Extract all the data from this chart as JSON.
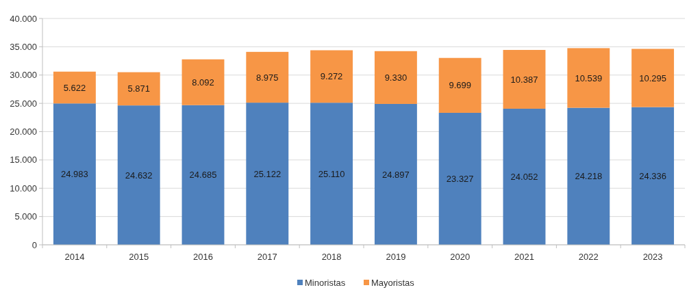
{
  "chart_data": {
    "type": "bar",
    "stacked": true,
    "categories": [
      "2014",
      "2015",
      "2016",
      "2017",
      "2018",
      "2019",
      "2020",
      "2021",
      "2022",
      "2023"
    ],
    "series": [
      {
        "name": "Minoristas",
        "color": "#4f81bd",
        "values": [
          24983,
          24632,
          24685,
          25122,
          25110,
          24897,
          23327,
          24052,
          24218,
          24336
        ],
        "value_labels": [
          "24.983",
          "24.632",
          "24.685",
          "25.122",
          "25.110",
          "24.897",
          "23.327",
          "24.052",
          "24.218",
          "24.336"
        ]
      },
      {
        "name": "Mayoristas",
        "color": "#f79646",
        "values": [
          5622,
          5871,
          8092,
          8975,
          9272,
          9330,
          9699,
          10387,
          10539,
          10295
        ],
        "value_labels": [
          "5.622",
          "5.871",
          "8.092",
          "8.975",
          "9.272",
          "9.330",
          "9.699",
          "10.387",
          "10.539",
          "10.295"
        ]
      }
    ],
    "ylim": [
      0,
      40000
    ],
    "yticks": [
      {
        "value": 0,
        "label": "0"
      },
      {
        "value": 5000,
        "label": "5.000"
      },
      {
        "value": 10000,
        "label": "10.000"
      },
      {
        "value": 15000,
        "label": "15.000"
      },
      {
        "value": 20000,
        "label": "20.000"
      },
      {
        "value": 25000,
        "label": "25.000"
      },
      {
        "value": 30000,
        "label": "30.000"
      },
      {
        "value": 35000,
        "label": "35.000"
      },
      {
        "value": 40000,
        "label": "40.000"
      }
    ],
    "grid": "y",
    "legend": "bottom"
  }
}
